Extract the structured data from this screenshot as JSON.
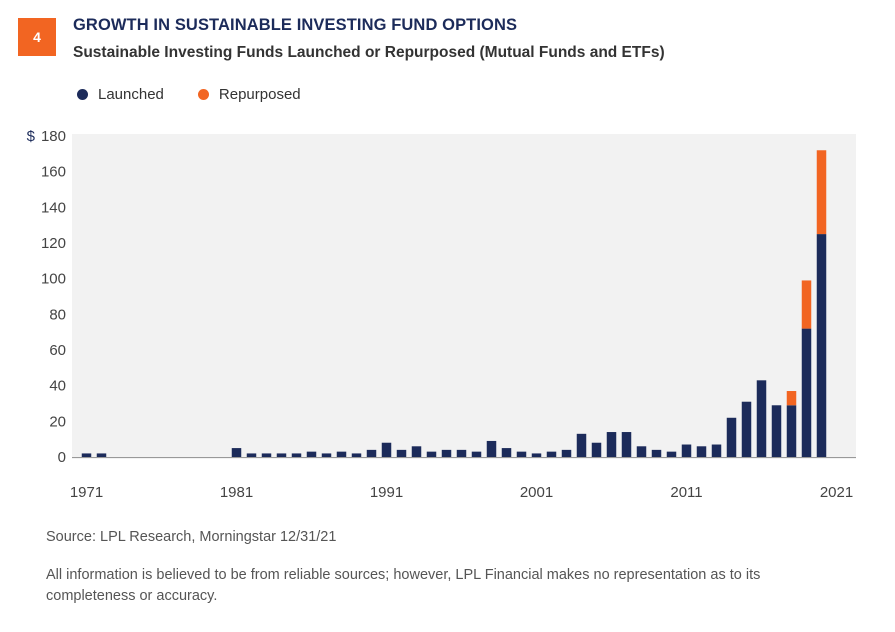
{
  "header": {
    "badge": "4",
    "title": "GROWTH IN SUSTAINABLE INVESTING FUND OPTIONS",
    "subtitle": "Sustainable Investing Funds Launched or Repurposed (Mutual Funds and ETFs)"
  },
  "footer": {
    "source": "Source: LPL Research, Morningstar  12/31/21",
    "disclaimer": "All information is believed to be from reliable sources; however, LPL Financial makes no representation as to its completeness or accuracy."
  },
  "colors": {
    "launched": "#1c2b5a",
    "repurposed": "#f26522",
    "plot_bg": "#f2f2f2",
    "badge": "#f26522"
  },
  "chart_data": {
    "type": "bar",
    "stacked": true,
    "y_prefix": "$",
    "ylim": [
      0,
      180
    ],
    "yticks": [
      0,
      20,
      40,
      60,
      80,
      100,
      120,
      140,
      160,
      180
    ],
    "ytick_labels": [
      "0",
      "20",
      "40",
      "60",
      "80",
      "100",
      "120",
      "140",
      "160",
      "180"
    ],
    "xticks": [
      1971,
      1981,
      1991,
      2001,
      2011,
      2021
    ],
    "xtick_labels": [
      "1971",
      "1981",
      "1991",
      "2001",
      "2011",
      "2021"
    ],
    "legend_position": "top-left",
    "grid": false,
    "x": [
      1971,
      1972,
      1973,
      1974,
      1975,
      1976,
      1977,
      1978,
      1979,
      1980,
      1981,
      1982,
      1983,
      1984,
      1985,
      1986,
      1987,
      1988,
      1989,
      1990,
      1991,
      1992,
      1993,
      1994,
      1995,
      1996,
      1997,
      1998,
      1999,
      2000,
      2001,
      2002,
      2003,
      2004,
      2005,
      2006,
      2007,
      2008,
      2009,
      2010,
      2011,
      2012,
      2013,
      2014,
      2015,
      2016,
      2017,
      2018,
      2019,
      2020,
      2021
    ],
    "series": [
      {
        "name": "Launched",
        "values": [
          2,
          2,
          0,
          0,
          0,
          0,
          0,
          0,
          0,
          0,
          5,
          2,
          2,
          2,
          2,
          3,
          2,
          3,
          2,
          4,
          8,
          4,
          6,
          3,
          4,
          4,
          3,
          9,
          5,
          3,
          2,
          3,
          4,
          13,
          8,
          14,
          14,
          6,
          4,
          3,
          7,
          6,
          7,
          22,
          31,
          43,
          29,
          29,
          72,
          125,
          0
        ]
      },
      {
        "name": "Repurposed",
        "values": [
          0,
          0,
          0,
          0,
          0,
          0,
          0,
          0,
          0,
          0,
          0,
          0,
          0,
          0,
          0,
          0,
          0,
          0,
          0,
          0,
          0,
          0,
          0,
          0,
          0,
          0,
          0,
          0,
          0,
          0,
          0,
          0,
          0,
          0,
          0,
          0,
          0,
          0,
          0,
          0,
          0,
          0,
          0,
          0,
          0,
          0,
          0,
          8,
          27,
          47,
          0
        ]
      }
    ]
  }
}
